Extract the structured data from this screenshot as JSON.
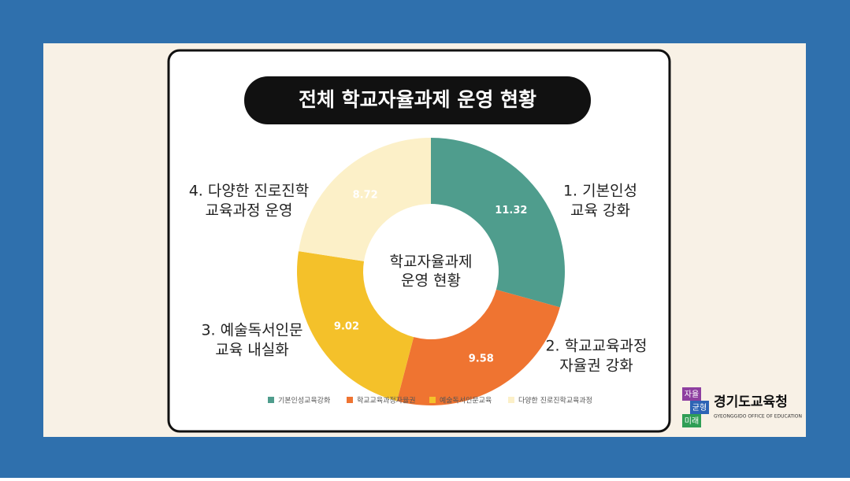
{
  "chart_data": {
    "type": "donut",
    "title": "전체 학교자율과제 운영 현황",
    "center_text": [
      "학교자율과제",
      "운영 현황"
    ],
    "series": [
      {
        "name": "기본인성교육강화",
        "color": "#4f9d8d",
        "values": [
          11.32
        ]
      },
      {
        "name": "학교교육과정자율권",
        "color": "#ef7431",
        "values": [
          9.58
        ]
      },
      {
        "name": "예술독서인문교육",
        "color": "#f4c12a",
        "values": [
          9.02
        ]
      },
      {
        "name": "다양한 진로진학교육과정",
        "color": "#fcf0c8",
        "values": [
          8.72
        ]
      }
    ],
    "annotations": [
      {
        "lines": [
          "1. 기본인성",
          "교육 강화"
        ]
      },
      {
        "lines": [
          "2. 학교교육과정",
          "자율권 강화"
        ]
      },
      {
        "lines": [
          "3. 예술독서인문",
          "교육 내실화"
        ]
      },
      {
        "lines": [
          "4. 다양한 진로진학",
          "교육과정 운영"
        ]
      }
    ],
    "legend": "bottom"
  },
  "logo": {
    "badge": [
      "자율",
      "균형",
      "미래"
    ],
    "name": "경기도교육청",
    "subtitle": "GYEONGGIDO OFFICE OF EDUCATION"
  }
}
